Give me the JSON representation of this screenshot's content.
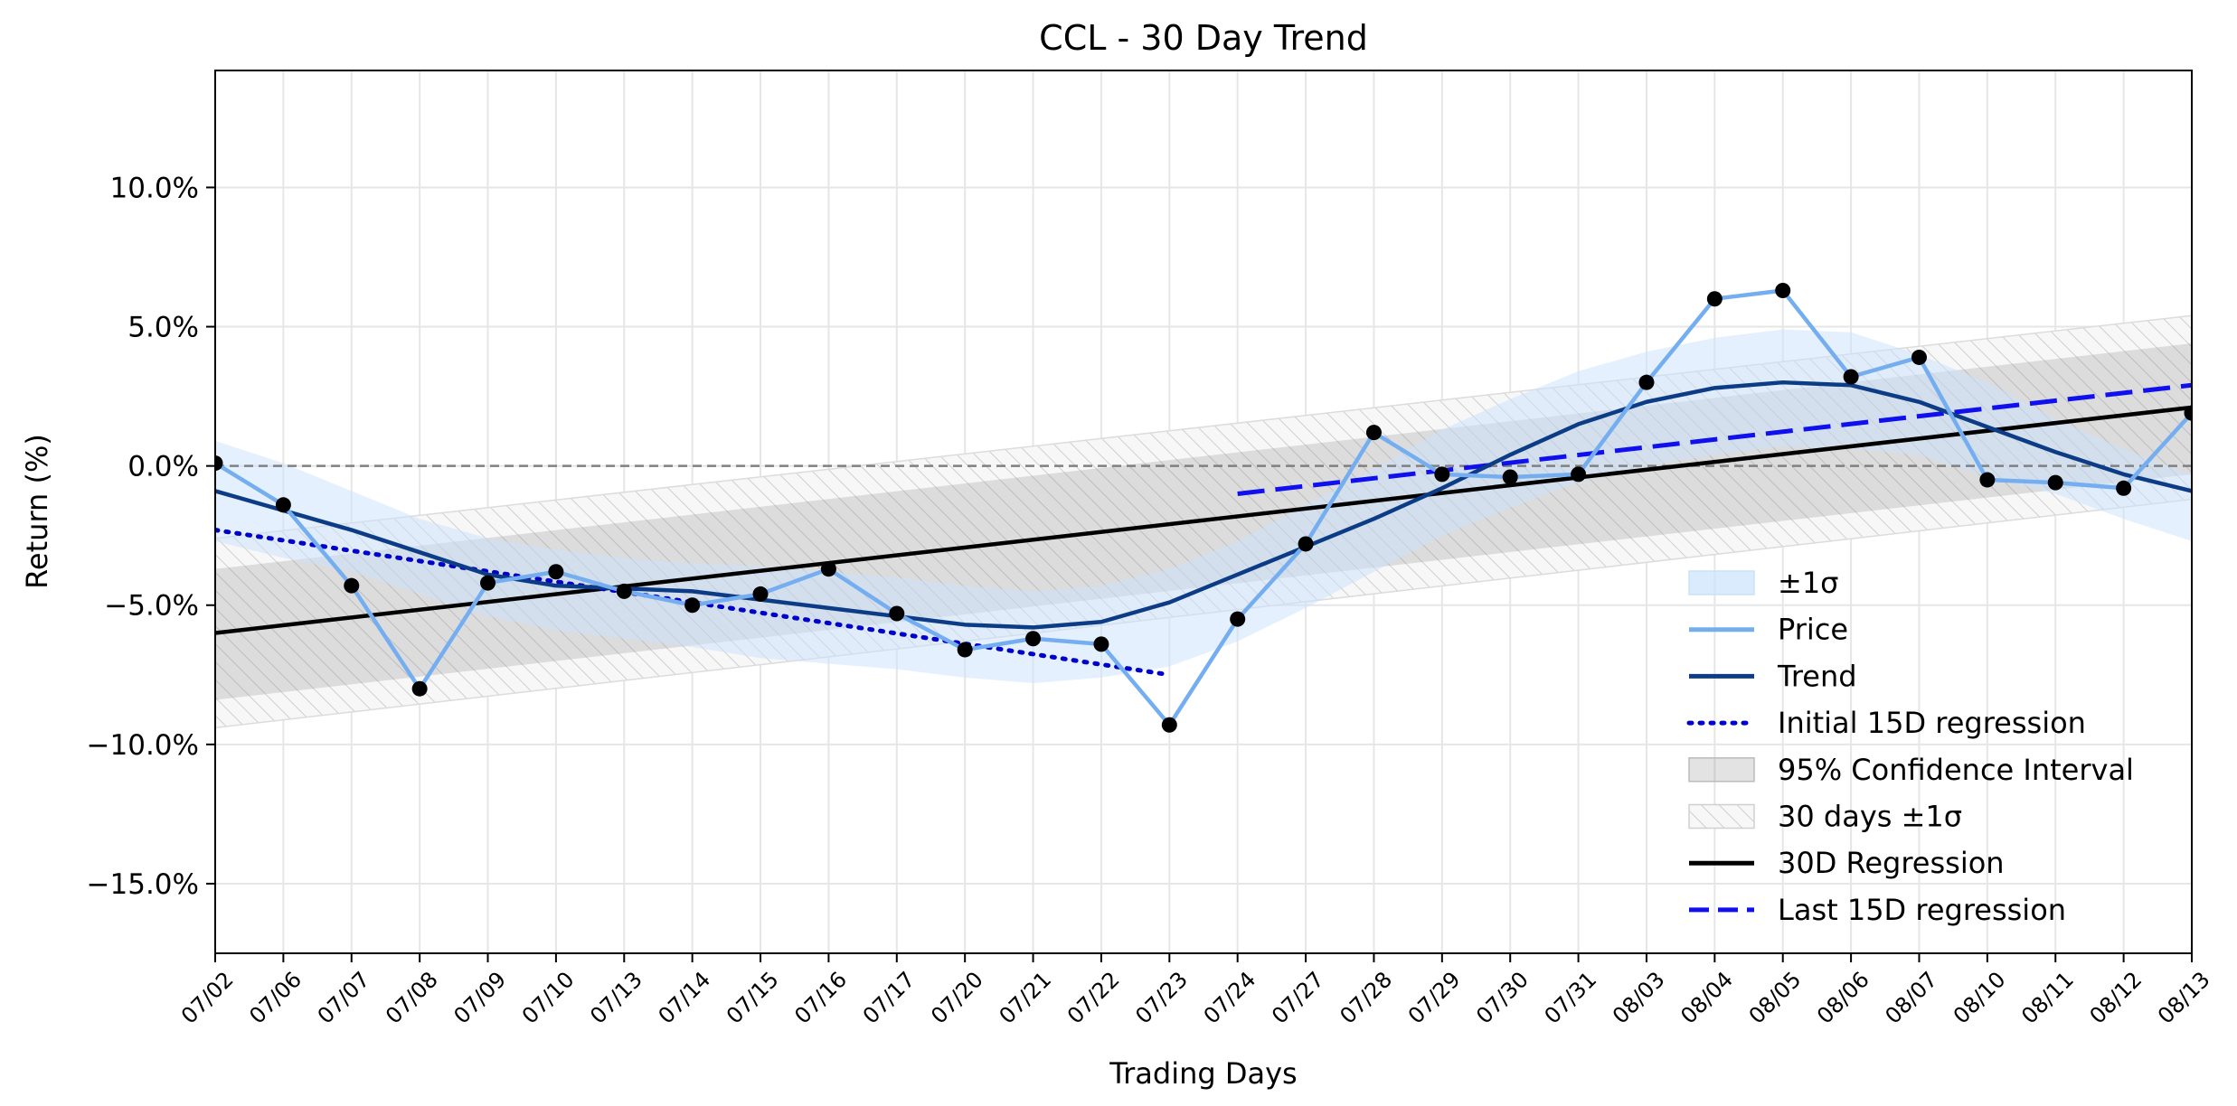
{
  "chart_data": {
    "type": "line",
    "title": "CCL - 30 Day Trend",
    "xlabel": "Trading Days",
    "ylabel": "Return (%)",
    "ylim": [
      -17.5,
      14.2
    ],
    "yticks": [
      -15,
      -10,
      -5,
      0,
      5,
      10
    ],
    "ytick_labels": [
      "−15.0%",
      "−10.0%",
      "−5.0%",
      "0.0%",
      "5.0%",
      "10.0%"
    ],
    "grid": true,
    "legend_position": "lower-right",
    "categories": [
      "07/02",
      "07/06",
      "07/07",
      "07/08",
      "07/09",
      "07/10",
      "07/13",
      "07/14",
      "07/15",
      "07/16",
      "07/17",
      "07/20",
      "07/21",
      "07/22",
      "07/23",
      "07/24",
      "07/27",
      "07/28",
      "07/29",
      "07/30",
      "07/31",
      "08/03",
      "08/04",
      "08/05",
      "08/06",
      "08/07",
      "08/10",
      "08/11",
      "08/12",
      "08/13"
    ],
    "series": [
      {
        "name": "Price",
        "color": "#75aef0",
        "values": [
          0.1,
          -1.4,
          -4.3,
          -8.0,
          -4.2,
          -3.8,
          -4.5,
          -5.0,
          -4.6,
          -3.7,
          -5.3,
          -6.6,
          -6.2,
          -6.4,
          -9.3,
          -5.5,
          -2.8,
          1.2,
          -0.3,
          -0.4,
          -0.3,
          3.0,
          6.0,
          6.3,
          3.2,
          3.9,
          -0.5,
          -0.6,
          -0.8,
          1.9
        ]
      },
      {
        "name": "Trend",
        "color": "#0d3c87",
        "values": [
          -0.9,
          -1.6,
          -2.3,
          -3.1,
          -3.9,
          -4.3,
          -4.4,
          -4.5,
          -4.8,
          -5.1,
          -5.4,
          -5.7,
          -5.8,
          -5.6,
          -4.9,
          -3.9,
          -2.9,
          -1.9,
          -0.8,
          0.4,
          1.5,
          2.3,
          2.8,
          3.0,
          2.9,
          2.3,
          1.4,
          0.5,
          -0.3,
          -0.9
        ]
      },
      {
        "name": "Initial 15D regression",
        "color": "#0000cc",
        "x_range": [
          0,
          14
        ],
        "y_range": [
          -2.3,
          -7.5
        ]
      },
      {
        "name": "30D Regression",
        "color": "#000000",
        "x_range": [
          0,
          29
        ],
        "y_range": [
          -6.0,
          2.1
        ]
      },
      {
        "name": "Last 15D regression",
        "color": "#1010ee",
        "x_range": [
          15,
          29
        ],
        "y_range": [
          -1.0,
          2.9
        ]
      }
    ],
    "sigma_band": {
      "name": "±1σ",
      "upper": [
        0.9,
        0.1,
        -0.9,
        -1.9,
        -2.6,
        -3.0,
        -3.3,
        -3.5,
        -3.6,
        -3.8,
        -4.0,
        -4.3,
        -4.5,
        -4.3,
        -3.7,
        -2.7,
        -1.4,
        -0.1,
        1.3,
        2.4,
        3.4,
        4.1,
        4.6,
        4.9,
        4.8,
        4.0,
        3.0,
        1.7,
        0.6,
        -0.3
      ],
      "lower": [
        -2.7,
        -3.3,
        -3.8,
        -4.6,
        -5.4,
        -5.9,
        -6.2,
        -6.5,
        -6.9,
        -7.1,
        -7.3,
        -7.6,
        -7.8,
        -7.6,
        -7.2,
        -6.3,
        -5.1,
        -3.8,
        -2.5,
        -1.5,
        -0.6,
        0.0,
        0.4,
        0.7,
        0.6,
        0.4,
        -0.4,
        -1.0,
        -1.9,
        -2.7
      ]
    },
    "confidence_band": {
      "name": "95% Confidence Interval",
      "start": [
        -3.7,
        -8.4
      ],
      "end": [
        4.4,
        -0.3
      ]
    },
    "thirty_day_band": {
      "name": "30 days ±1σ",
      "start": [
        -2.6,
        -9.4
      ],
      "end": [
        5.4,
        -1.2
      ]
    },
    "zero_line": 0
  }
}
